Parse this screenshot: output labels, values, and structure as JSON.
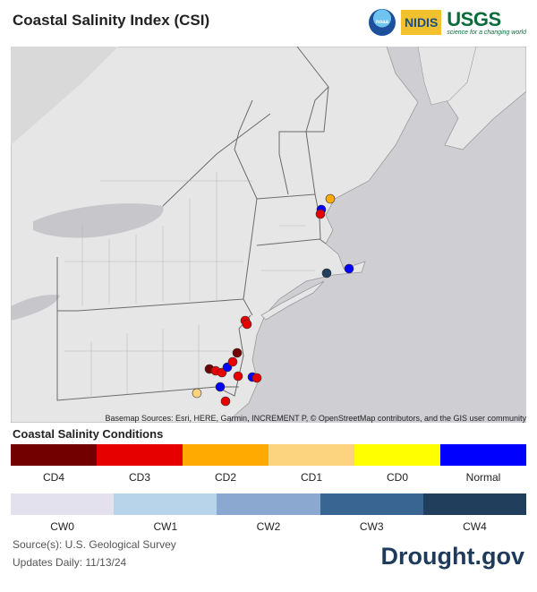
{
  "header": {
    "title": "Coastal Salinity Index (CSI)",
    "logos": {
      "noaa": "noaa",
      "nidis": "NIDIS",
      "usgs": "USGS",
      "usgs_tagline": "science for a changing world"
    }
  },
  "map": {
    "attribution": "Basemap Sources: Esri, HERE, Garmin, INCREMENT P, © OpenStreetMap contributors, and the GIS user community"
  },
  "legend": {
    "title": "Coastal Salinity Conditions",
    "dry": [
      {
        "label": "CD4",
        "color": "#730000"
      },
      {
        "label": "CD3",
        "color": "#e60000"
      },
      {
        "label": "CD2",
        "color": "#ffaa00"
      },
      {
        "label": "CD1",
        "color": "#fcd37f"
      },
      {
        "label": "CD0",
        "color": "#ffff00"
      },
      {
        "label": "Normal",
        "color": "#0000ff"
      }
    ],
    "wet": [
      {
        "label": "CW0",
        "color": "#e3e1ed"
      },
      {
        "label": "CW1",
        "color": "#b8d4ea"
      },
      {
        "label": "CW2",
        "color": "#8ba8d1"
      },
      {
        "label": "CW3",
        "color": "#386591"
      },
      {
        "label": "CW4",
        "color": "#213e5c"
      }
    ]
  },
  "footer": {
    "source": "Source(s): U.S. Geological Survey",
    "updates": "Updates Daily: 11/13/24",
    "brand": "Drought.gov"
  }
}
